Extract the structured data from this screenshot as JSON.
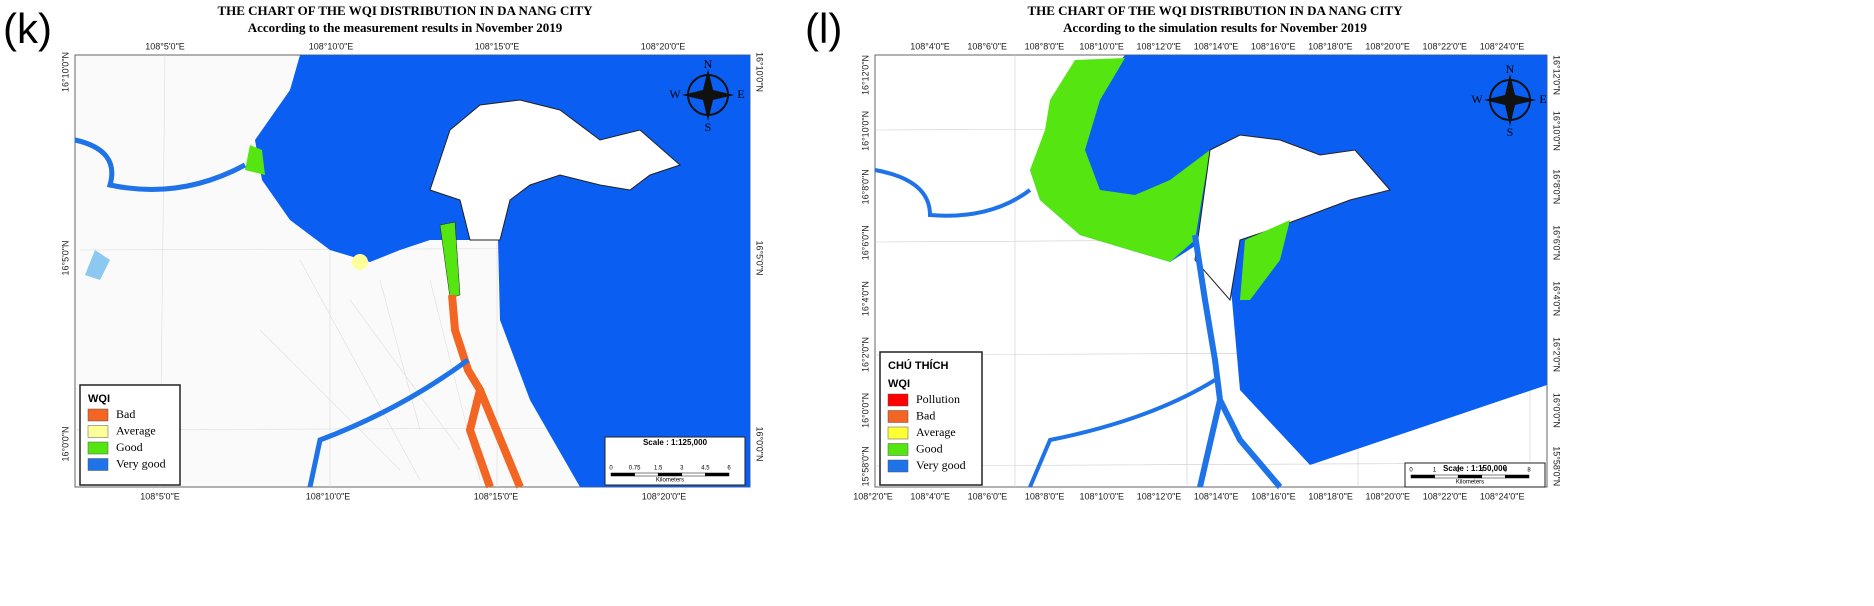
{
  "panels": [
    {
      "letter": "(k)",
      "title": "THE CHART OF THE WQI DISTRIBUTION IN DA NANG CITY",
      "subtitle": "According to the measurement results in November 2019",
      "top_ticks": [
        "108°5'0\"E",
        "108°10'0\"E",
        "108°15'0\"E",
        "108°20'0\"E"
      ],
      "bottom_ticks": [
        "108°5'0\"E",
        "108°10'0\"E",
        "108°15'0\"E",
        "108°20'0\"E"
      ],
      "left_ticks": [
        "16°10'0\"N",
        "16°5'0\"N",
        "16°0'0\"N"
      ],
      "right_ticks": [
        "16°10'0\"N",
        "16°5'0\"N",
        "16°0'0\"N"
      ],
      "compass": {
        "n": "N",
        "s": "S",
        "e": "E",
        "w": "W"
      },
      "legend": {
        "title": "WQI",
        "items": [
          {
            "label": "Bad",
            "color": "#f26522"
          },
          {
            "label": "Average",
            "color": "#ffff99"
          },
          {
            "label": "Good",
            "color": "#55e612"
          },
          {
            "label": "Very good",
            "color": "#1f73e8"
          }
        ]
      },
      "scale": {
        "label": "Scale : 1:125,000",
        "ticks": [
          "0",
          "0.75",
          "1.5",
          "3",
          "4.5",
          "6"
        ],
        "unit": "Kilometers"
      }
    },
    {
      "letter": "(l)",
      "title": "THE CHART OF THE WQI DISTRIBUTION IN DA NANG CITY",
      "subtitle": "According to the simulation results for November 2019",
      "top_ticks": [
        "108°4'0\"E",
        "108°6'0\"E",
        "108°8'0\"E",
        "108°10'0\"E",
        "108°12'0\"E",
        "108°14'0\"E",
        "108°16'0\"E",
        "108°18'0\"E",
        "108°20'0\"E",
        "108°22'0\"E",
        "108°24'0\"E"
      ],
      "bottom_ticks": [
        "108°2'0\"E",
        "108°4'0\"E",
        "108°6'0\"E",
        "108°8'0\"E",
        "108°10'0\"E",
        "108°12'0\"E",
        "108°14'0\"E",
        "108°16'0\"E",
        "108°18'0\"E",
        "108°20'0\"E",
        "108°22'0\"E",
        "108°24'0\"E"
      ],
      "left_ticks": [
        "16°12'0\"N",
        "16°10'0\"N",
        "16°8'0\"N",
        "16°6'0\"N",
        "16°4'0\"N",
        "16°2'0\"N",
        "16°0'0\"N",
        "15°58'0\"N"
      ],
      "right_ticks": [
        "16°12'0\"N",
        "16°10'0\"N",
        "16°8'0\"N",
        "16°6'0\"N",
        "16°4'0\"N",
        "16°2'0\"N",
        "16°0'0\"N",
        "15°58'0\"N"
      ],
      "compass": {
        "n": "N",
        "s": "S",
        "e": "E",
        "w": "W"
      },
      "legend": {
        "heading": "CHÚ THÍCH",
        "title": "WQI",
        "items": [
          {
            "label": "Pollution",
            "color": "#ff0000"
          },
          {
            "label": "Bad",
            "color": "#f26522"
          },
          {
            "label": "Average",
            "color": "#ffff33"
          },
          {
            "label": "Good",
            "color": "#55e612"
          },
          {
            "label": "Very good",
            "color": "#1f73e8"
          }
        ]
      },
      "scale": {
        "label": "Scale : 1:150,000",
        "ticks": [
          "0",
          "1",
          "2",
          "4",
          "6",
          "8"
        ],
        "unit": "Kilometers"
      }
    }
  ]
}
